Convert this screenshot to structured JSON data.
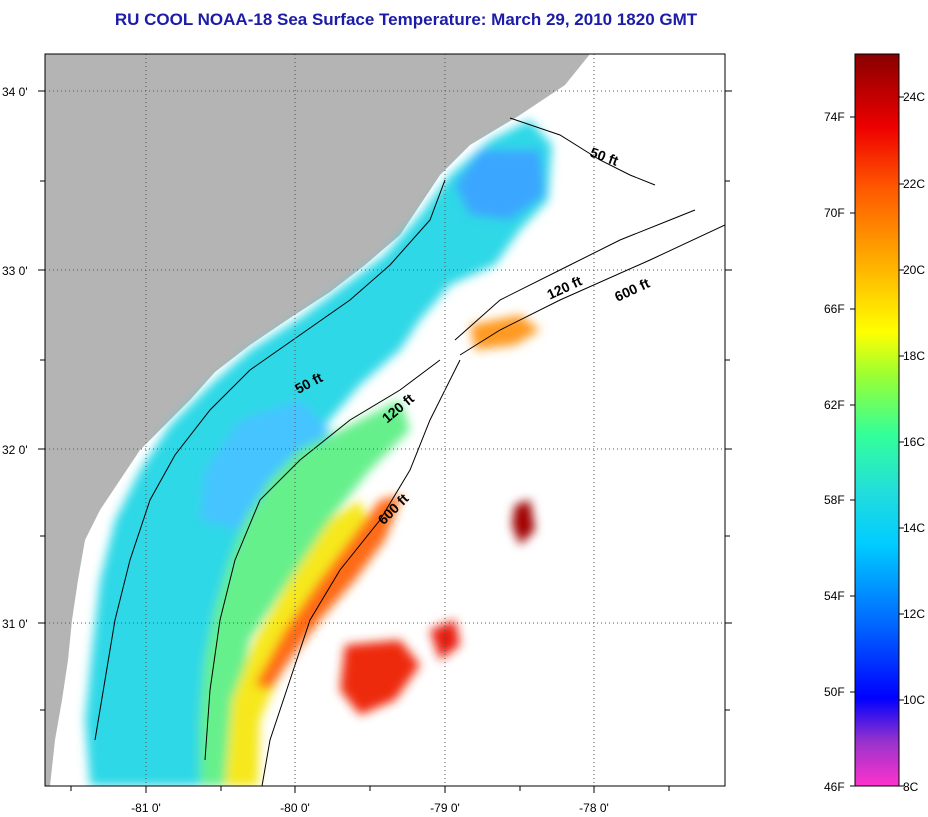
{
  "title": "RU COOL  NOAA-18  Sea Surface Temperature:  March 29, 2010 1820 GMT",
  "colors": {
    "title": "#1c1ca8",
    "land": "#b4b4b4",
    "no_data": "#ffffff",
    "grid": "#555555"
  },
  "map": {
    "lat_labels": [
      "34 0'",
      "33 0'",
      "32 0'",
      "31 0'"
    ],
    "lon_labels": [
      "-81 0'",
      "-80 0'",
      "-79 0'",
      "-78 0'"
    ],
    "depth_labels": [
      "50 ft",
      "120 ft",
      "600 ft",
      "50 ft",
      "120 ft",
      "600 ft"
    ]
  },
  "colorbar": {
    "fahrenheit_labels": [
      "74F",
      "70F",
      "66F",
      "62F",
      "58F",
      "54F",
      "50F",
      "46F"
    ],
    "celsius_labels": [
      "24C",
      "22C",
      "20C",
      "18C",
      "16C",
      "14C",
      "12C",
      "10C",
      "8C"
    ]
  }
}
